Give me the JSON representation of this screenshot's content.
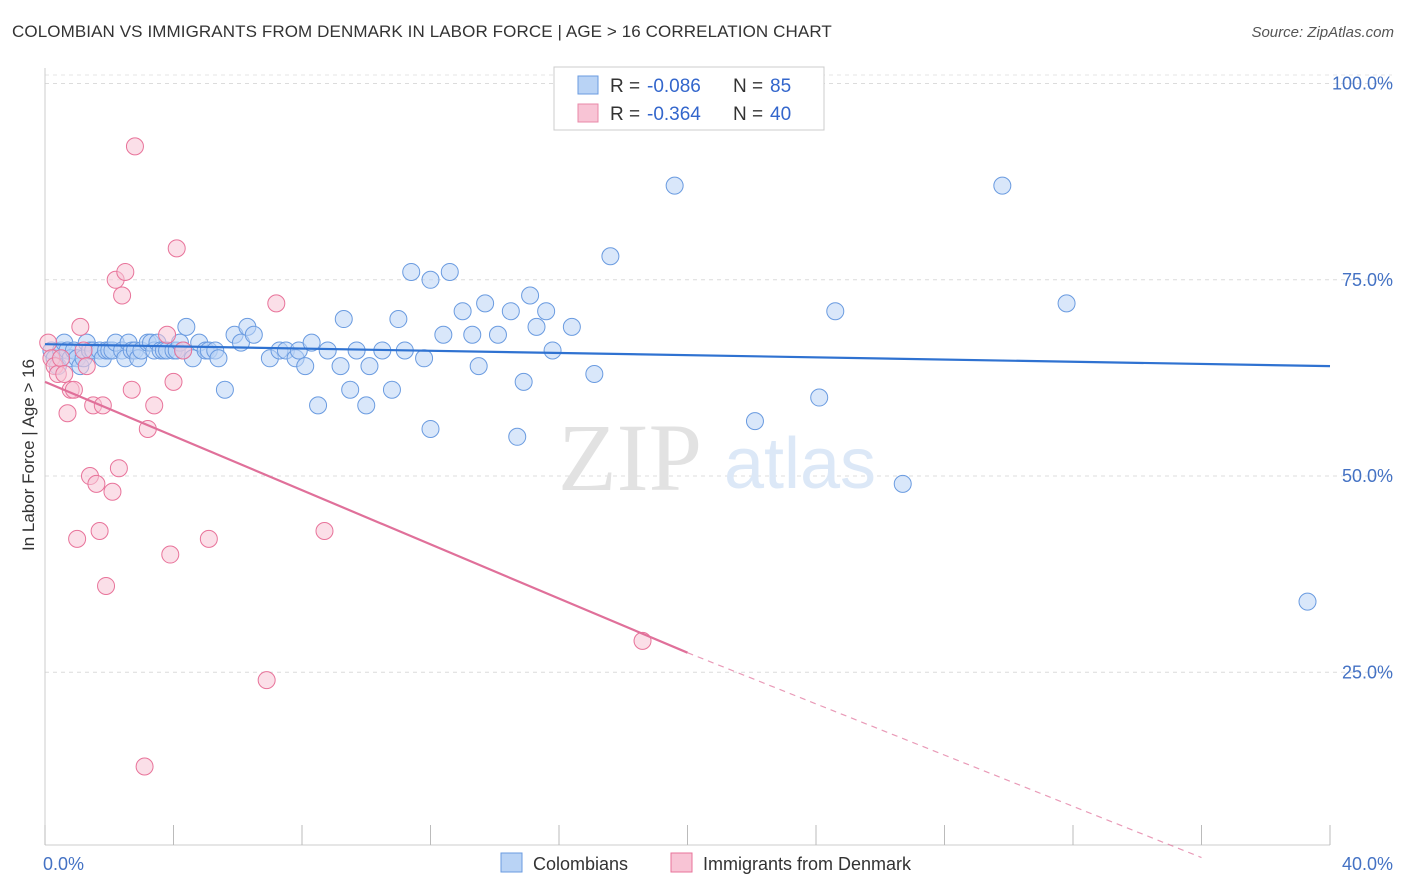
{
  "title": "COLOMBIAN VS IMMIGRANTS FROM DENMARK IN LABOR FORCE | AGE > 16 CORRELATION CHART",
  "source": "Source: ZipAtlas.com",
  "watermark": {
    "zip": "ZIP",
    "atlas": "atlas"
  },
  "legend": {
    "r_label": "R =",
    "n_label": "N =",
    "rows": [
      {
        "r": "-0.086",
        "n": "85",
        "fill": "#b9d3f5",
        "stroke": "#6a9be0"
      },
      {
        "r": "-0.364",
        "n": "40",
        "fill": "#f8c4d5",
        "stroke": "#e889a8"
      }
    ]
  },
  "chart_data": {
    "type": "scatter",
    "title": "COLOMBIAN VS IMMIGRANTS FROM DENMARK IN LABOR FORCE | AGE > 16 CORRELATION CHART",
    "xlabel": "",
    "ylabel": "In Labor Force | Age > 16",
    "xlim": [
      0,
      40
    ],
    "ylim": [
      3,
      103
    ],
    "x_tick_labels": [
      "0.0%",
      "40.0%"
    ],
    "y_ticks": [
      {
        "value": 25,
        "label": "25.0%"
      },
      {
        "value": 50,
        "label": "50.0%"
      },
      {
        "value": 75,
        "label": "75.0%"
      },
      {
        "value": 100,
        "label": "100.0%"
      }
    ],
    "grid": true,
    "series": [
      {
        "name": "Colombians",
        "color": "#6a9be0",
        "fill": "#b9d3f5",
        "trend": {
          "x0": 0,
          "y0": 66.8,
          "x1": 40,
          "y1": 64.0,
          "dashed_from": null
        },
        "points": [
          [
            0.2,
            66
          ],
          [
            0.3,
            65
          ],
          [
            0.4,
            64
          ],
          [
            0.5,
            66
          ],
          [
            0.6,
            67
          ],
          [
            0.7,
            66
          ],
          [
            0.8,
            65
          ],
          [
            0.9,
            66
          ],
          [
            1.0,
            65
          ],
          [
            1.1,
            64
          ],
          [
            1.2,
            65
          ],
          [
            1.3,
            67
          ],
          [
            1.4,
            66
          ],
          [
            1.5,
            66
          ],
          [
            1.7,
            66
          ],
          [
            1.8,
            65
          ],
          [
            1.9,
            66
          ],
          [
            2.0,
            66
          ],
          [
            2.1,
            66
          ],
          [
            2.2,
            67
          ],
          [
            2.4,
            66
          ],
          [
            2.5,
            65
          ],
          [
            2.6,
            67
          ],
          [
            2.7,
            66
          ],
          [
            2.8,
            66
          ],
          [
            2.9,
            65
          ],
          [
            3.0,
            66
          ],
          [
            3.2,
            67
          ],
          [
            3.3,
            67
          ],
          [
            3.4,
            66
          ],
          [
            3.5,
            67
          ],
          [
            3.6,
            66
          ],
          [
            3.7,
            66
          ],
          [
            3.8,
            66
          ],
          [
            4.0,
            66
          ],
          [
            4.1,
            66
          ],
          [
            4.2,
            67
          ],
          [
            4.3,
            66
          ],
          [
            4.4,
            69
          ],
          [
            4.6,
            65
          ],
          [
            4.8,
            67
          ],
          [
            5.0,
            66
          ],
          [
            5.1,
            66
          ],
          [
            5.3,
            66
          ],
          [
            5.4,
            65
          ],
          [
            5.6,
            61
          ],
          [
            5.9,
            68
          ],
          [
            6.1,
            67
          ],
          [
            6.3,
            69
          ],
          [
            6.5,
            68
          ],
          [
            7.0,
            65
          ],
          [
            7.3,
            66
          ],
          [
            7.5,
            66
          ],
          [
            7.8,
            65
          ],
          [
            7.9,
            66
          ],
          [
            8.1,
            64
          ],
          [
            8.3,
            67
          ],
          [
            8.5,
            59
          ],
          [
            8.8,
            66
          ],
          [
            9.2,
            64
          ],
          [
            9.3,
            70
          ],
          [
            9.5,
            61
          ],
          [
            9.7,
            66
          ],
          [
            10.0,
            59
          ],
          [
            10.1,
            64
          ],
          [
            10.5,
            66
          ],
          [
            10.8,
            61
          ],
          [
            11.0,
            70
          ],
          [
            11.2,
            66
          ],
          [
            11.8,
            65
          ],
          [
            11.4,
            76
          ],
          [
            12.0,
            56
          ],
          [
            12.0,
            75
          ],
          [
            12.4,
            68
          ],
          [
            12.6,
            76
          ],
          [
            13.0,
            71
          ],
          [
            13.3,
            68
          ],
          [
            13.5,
            64
          ],
          [
            13.7,
            72
          ],
          [
            14.1,
            68
          ],
          [
            14.5,
            71
          ],
          [
            14.7,
            55
          ],
          [
            14.9,
            62
          ],
          [
            15.1,
            73
          ],
          [
            15.3,
            69
          ],
          [
            15.6,
            71
          ],
          [
            15.8,
            66
          ],
          [
            16.4,
            69
          ],
          [
            17.1,
            63
          ],
          [
            17.6,
            78
          ],
          [
            19.6,
            87
          ],
          [
            22.1,
            57
          ],
          [
            24.1,
            60
          ],
          [
            24.6,
            71
          ],
          [
            26.7,
            49
          ],
          [
            29.8,
            87
          ],
          [
            31.8,
            72
          ],
          [
            39.3,
            34
          ]
        ]
      },
      {
        "name": "Immigrants from Denmark",
        "color": "#e8739a",
        "fill": "#f8c4d5",
        "trend": {
          "x0": 0,
          "y0": 62.0,
          "x1": 20,
          "y1": 27.5,
          "dashed_from": 20,
          "dash_x1": 36,
          "dash_y1": 1.4
        },
        "points": [
          [
            0.1,
            67
          ],
          [
            0.2,
            65
          ],
          [
            0.3,
            64
          ],
          [
            0.4,
            63
          ],
          [
            0.5,
            65
          ],
          [
            0.6,
            63
          ],
          [
            0.7,
            58
          ],
          [
            0.8,
            61
          ],
          [
            0.9,
            61
          ],
          [
            1.0,
            42
          ],
          [
            1.1,
            69
          ],
          [
            1.2,
            66
          ],
          [
            1.3,
            64
          ],
          [
            1.4,
            50
          ],
          [
            1.5,
            59
          ],
          [
            1.6,
            49
          ],
          [
            1.7,
            43
          ],
          [
            1.8,
            59
          ],
          [
            1.9,
            36
          ],
          [
            2.1,
            48
          ],
          [
            2.2,
            75
          ],
          [
            2.3,
            51
          ],
          [
            2.4,
            73
          ],
          [
            2.5,
            76
          ],
          [
            2.7,
            61
          ],
          [
            2.8,
            92
          ],
          [
            3.1,
            13
          ],
          [
            3.2,
            56
          ],
          [
            3.4,
            59
          ],
          [
            3.8,
            68
          ],
          [
            3.9,
            40
          ],
          [
            4.0,
            62
          ],
          [
            4.1,
            79
          ],
          [
            4.3,
            66
          ],
          [
            5.1,
            42
          ],
          [
            6.9,
            24
          ],
          [
            7.2,
            72
          ],
          [
            8.7,
            43
          ],
          [
            18.6,
            29
          ]
        ]
      }
    ]
  }
}
